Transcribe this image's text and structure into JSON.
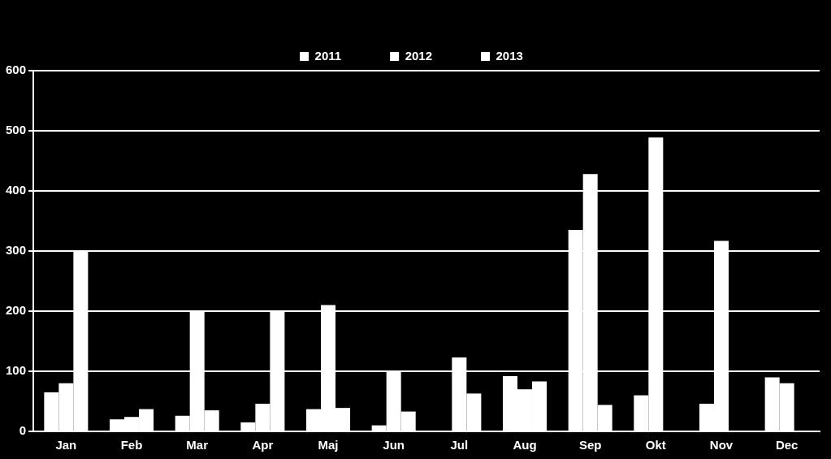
{
  "chart_data": {
    "type": "bar",
    "categories": [
      "Jan",
      "Feb",
      "Mar",
      "Apr",
      "Maj",
      "Jun",
      "Jul",
      "Aug",
      "Sep",
      "Okt",
      "Nov",
      "Dec"
    ],
    "series": [
      {
        "name": "2011",
        "color": "#ffffff",
        "values": [
          65,
          20,
          26,
          15,
          37,
          10,
          0,
          92,
          335,
          60,
          46,
          90
        ]
      },
      {
        "name": "2012",
        "color": "#ffffff",
        "values": [
          80,
          24,
          200,
          46,
          210,
          100,
          123,
          70,
          428,
          489,
          317,
          80
        ]
      },
      {
        "name": "2013",
        "color": "#ffffff",
        "values": [
          300,
          37,
          35,
          200,
          39,
          33,
          63,
          83,
          44,
          0,
          0,
          0
        ]
      }
    ],
    "ylim": [
      0,
      600
    ],
    "yticks": [
      0,
      100,
      200,
      300,
      400,
      500,
      600
    ],
    "grid": "y",
    "legend": "top"
  }
}
